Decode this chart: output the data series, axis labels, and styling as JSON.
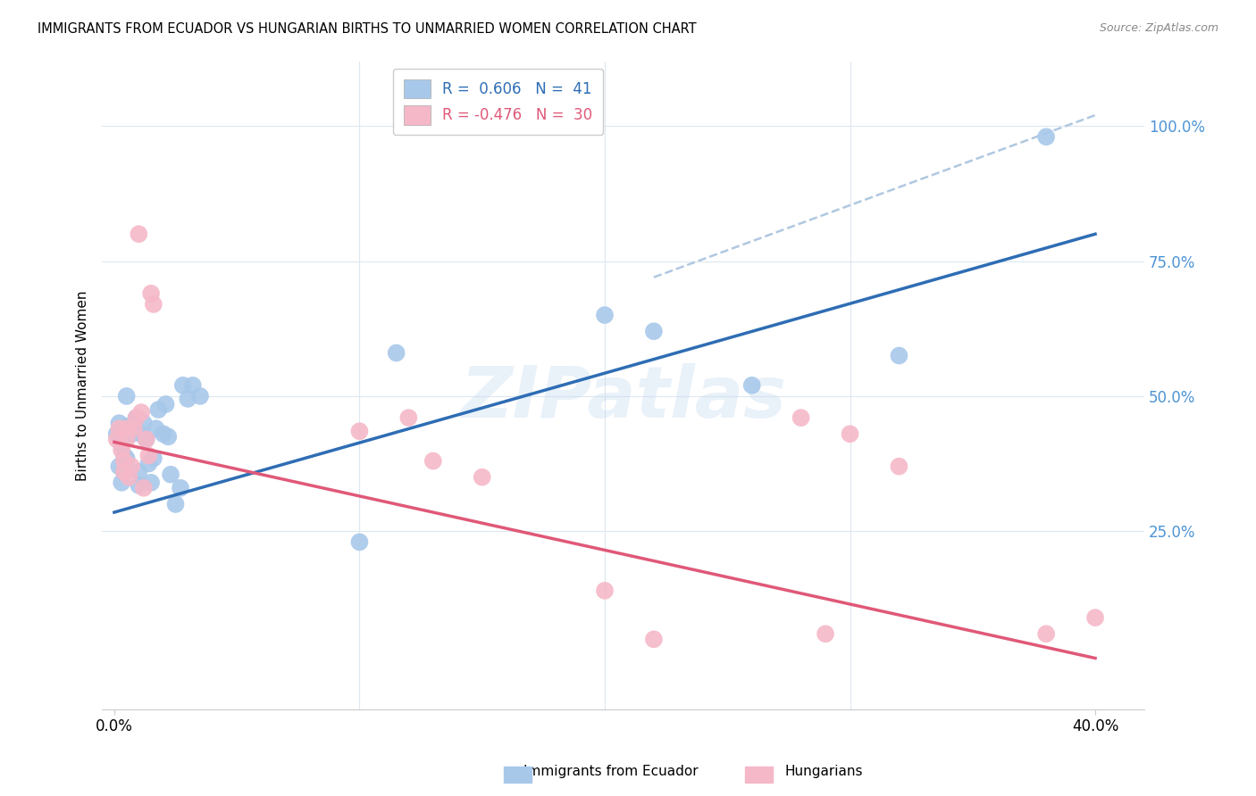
{
  "title": "IMMIGRANTS FROM ECUADOR VS HUNGARIAN BIRTHS TO UNMARRIED WOMEN CORRELATION CHART",
  "source": "Source: ZipAtlas.com",
  "ylabel": "Births to Unmarried Women",
  "watermark": "ZIPatlas",
  "blue_scatter_x": [
    0.001,
    0.002,
    0.002,
    0.003,
    0.003,
    0.004,
    0.004,
    0.005,
    0.005,
    0.006,
    0.006,
    0.007,
    0.008,
    0.009,
    0.01,
    0.01,
    0.011,
    0.012,
    0.013,
    0.014,
    0.015,
    0.016,
    0.017,
    0.018,
    0.02,
    0.021,
    0.022,
    0.023,
    0.025,
    0.027,
    0.028,
    0.03,
    0.032,
    0.035,
    0.1,
    0.115,
    0.2,
    0.22,
    0.26,
    0.32,
    0.38
  ],
  "blue_scatter_y": [
    0.43,
    0.45,
    0.37,
    0.34,
    0.41,
    0.36,
    0.39,
    0.385,
    0.5,
    0.445,
    0.44,
    0.43,
    0.435,
    0.46,
    0.335,
    0.36,
    0.43,
    0.45,
    0.42,
    0.375,
    0.34,
    0.385,
    0.44,
    0.475,
    0.43,
    0.485,
    0.425,
    0.355,
    0.3,
    0.33,
    0.52,
    0.495,
    0.52,
    0.5,
    0.23,
    0.58,
    0.65,
    0.62,
    0.52,
    0.575,
    0.98
  ],
  "pink_scatter_x": [
    0.001,
    0.002,
    0.003,
    0.004,
    0.004,
    0.005,
    0.005,
    0.006,
    0.007,
    0.008,
    0.009,
    0.01,
    0.011,
    0.012,
    0.013,
    0.014,
    0.015,
    0.016,
    0.1,
    0.12,
    0.13,
    0.15,
    0.2,
    0.22,
    0.28,
    0.29,
    0.3,
    0.32,
    0.38,
    0.4
  ],
  "pink_scatter_y": [
    0.42,
    0.44,
    0.4,
    0.36,
    0.38,
    0.42,
    0.44,
    0.35,
    0.37,
    0.44,
    0.46,
    0.8,
    0.47,
    0.33,
    0.42,
    0.39,
    0.69,
    0.67,
    0.435,
    0.46,
    0.38,
    0.35,
    0.14,
    0.05,
    0.46,
    0.06,
    0.43,
    0.37,
    0.06,
    0.09
  ],
  "blue_line_x": [
    0.0,
    0.4
  ],
  "blue_line_y": [
    0.285,
    0.8
  ],
  "pink_line_x": [
    0.0,
    0.4
  ],
  "pink_line_y": [
    0.415,
    0.015
  ],
  "dashed_line_x": [
    0.22,
    0.4
  ],
  "dashed_line_y": [
    0.72,
    1.02
  ],
  "blue_color": "#a8c8ea",
  "pink_color": "#f5b8c8",
  "blue_line_color": "#2e6db4",
  "pink_line_color": "#e05878",
  "dashed_line_color": "#b0c8e0",
  "grid_color": "#dde8f0",
  "right_tick_color": "#4d94d5",
  "background_color": "#ffffff",
  "xlim": [
    -0.005,
    0.42
  ],
  "ylim": [
    -0.08,
    1.12
  ],
  "ytick_vals": [
    0.0,
    0.25,
    0.5,
    0.75,
    1.0
  ],
  "ytick_labels": [
    "",
    "25.0%",
    "50.0%",
    "75.0%",
    "100.0%"
  ],
  "xtick_vals": [
    0.0,
    0.4
  ],
  "xtick_labels": [
    "0.0%",
    "40.0%"
  ],
  "bottom_legend_labels": [
    "Immigrants from Ecuador",
    "Hungarians"
  ]
}
